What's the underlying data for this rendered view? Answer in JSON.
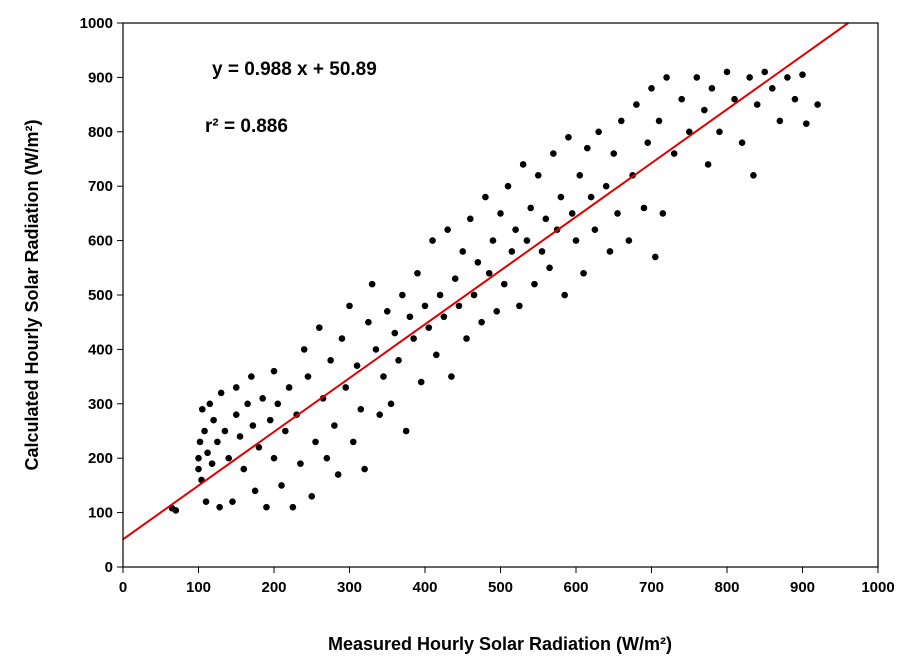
{
  "chart_data": {
    "type": "scatter",
    "xlabel": "Measured Hourly Solar Radiation (W/m²)",
    "ylabel": "Calculated Hourly Solar Radiation (W/m²)",
    "annotations": [
      "y = 0.988 x + 50.89",
      "r² = 0.886"
    ],
    "trend_line": {
      "slope": 0.988,
      "intercept": 50.89,
      "color": "#e00000"
    },
    "color": "#000000",
    "xlim": [
      0,
      1000
    ],
    "ylim": [
      0,
      1000
    ],
    "xticks": [
      0,
      100,
      200,
      300,
      400,
      500,
      600,
      700,
      800,
      900,
      1000
    ],
    "yticks": [
      0,
      100,
      200,
      300,
      400,
      500,
      600,
      700,
      800,
      900,
      1000
    ],
    "x": [
      65,
      70,
      100,
      100,
      102,
      104,
      105,
      108,
      110,
      112,
      115,
      118,
      120,
      125,
      128,
      130,
      135,
      140,
      145,
      150,
      150,
      155,
      160,
      165,
      170,
      172,
      175,
      180,
      185,
      190,
      195,
      200,
      200,
      205,
      210,
      215,
      220,
      225,
      230,
      235,
      240,
      245,
      250,
      255,
      260,
      265,
      270,
      275,
      280,
      285,
      290,
      295,
      300,
      305,
      310,
      315,
      320,
      325,
      330,
      335,
      340,
      345,
      350,
      355,
      360,
      365,
      370,
      375,
      380,
      385,
      390,
      395,
      400,
      405,
      410,
      415,
      420,
      425,
      430,
      435,
      440,
      445,
      450,
      455,
      460,
      465,
      470,
      475,
      480,
      485,
      490,
      495,
      500,
      505,
      510,
      515,
      520,
      525,
      530,
      535,
      540,
      545,
      550,
      555,
      560,
      565,
      570,
      575,
      580,
      585,
      590,
      595,
      600,
      605,
      610,
      615,
      620,
      625,
      630,
      640,
      645,
      650,
      655,
      660,
      670,
      675,
      680,
      690,
      695,
      700,
      705,
      710,
      715,
      720,
      730,
      740,
      750,
      760,
      770,
      775,
      780,
      790,
      800,
      810,
      820,
      830,
      835,
      840,
      850,
      860,
      870,
      880,
      890,
      900,
      905,
      920
    ],
    "values": [
      108,
      104,
      180,
      200,
      230,
      160,
      290,
      250,
      120,
      210,
      300,
      190,
      270,
      230,
      110,
      320,
      250,
      200,
      120,
      280,
      330,
      240,
      180,
      300,
      350,
      260,
      140,
      220,
      310,
      110,
      270,
      360,
      200,
      300,
      150,
      250,
      330,
      110,
      280,
      190,
      400,
      350,
      130,
      230,
      440,
      310,
      200,
      380,
      260,
      170,
      420,
      330,
      480,
      230,
      370,
      290,
      180,
      450,
      520,
      400,
      280,
      350,
      470,
      300,
      430,
      380,
      500,
      250,
      460,
      420,
      540,
      340,
      480,
      440,
      600,
      390,
      500,
      460,
      620,
      350,
      530,
      480,
      580,
      420,
      640,
      500,
      560,
      450,
      680,
      540,
      600,
      470,
      650,
      520,
      700,
      580,
      620,
      480,
      740,
      600,
      660,
      520,
      720,
      580,
      640,
      550,
      760,
      620,
      680,
      500,
      790,
      650,
      600,
      720,
      540,
      770,
      680,
      620,
      800,
      700,
      580,
      760,
      650,
      820,
      600,
      720,
      850,
      660,
      780,
      880,
      570,
      820,
      650,
      900,
      760,
      860,
      800,
      900,
      840,
      740,
      880,
      800,
      910,
      860,
      780,
      900,
      720,
      850,
      910,
      880,
      820,
      900,
      860,
      905,
      815,
      850
    ]
  }
}
